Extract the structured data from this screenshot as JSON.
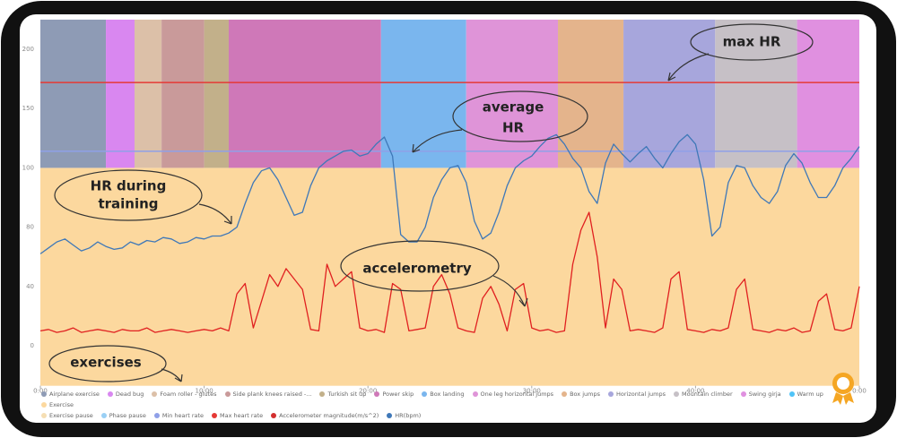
{
  "chart_data": {
    "type": "line",
    "ylim": [
      -27,
      225
    ],
    "yticks": [
      0,
      40,
      80,
      100,
      150,
      200
    ],
    "xlim": [
      0,
      50
    ],
    "xticks": [
      {
        "value": 0,
        "label": "0:00"
      },
      {
        "value": 10,
        "label": "10:00"
      },
      {
        "value": 20,
        "label": "20:00"
      },
      {
        "value": 30,
        "label": "30:00"
      },
      {
        "value": 40,
        "label": "40:00"
      },
      {
        "value": 50,
        "label": "0:00"
      }
    ],
    "base_band": {
      "to": 100,
      "color": "#fcd89e"
    },
    "segments": [
      {
        "start": 0,
        "end": 4.0,
        "color": "#8e9bb5"
      },
      {
        "start": 4.0,
        "end": 5.75,
        "color": "#d987f0"
      },
      {
        "start": 5.75,
        "end": 7.4,
        "color": "#dcc0a8"
      },
      {
        "start": 7.4,
        "end": 10.0,
        "color": "#c99a9a"
      },
      {
        "start": 10.0,
        "end": 11.5,
        "color": "#c2b08a"
      },
      {
        "start": 11.5,
        "end": 20.8,
        "color": "#cf78b8"
      },
      {
        "start": 20.8,
        "end": 26.0,
        "color": "#7ab6ee"
      },
      {
        "start": 26.0,
        "end": 31.6,
        "color": "#df94d8"
      },
      {
        "start": 31.6,
        "end": 35.6,
        "color": "#e4b48c"
      },
      {
        "start": 35.6,
        "end": 41.2,
        "color": "#a7a6dc"
      },
      {
        "start": 41.2,
        "end": 46.2,
        "color": "#c6c0c6"
      },
      {
        "start": 46.2,
        "end": 50,
        "color": "#e090e0"
      }
    ],
    "reference_lines": [
      {
        "name": "Max heart rate",
        "value": 172,
        "color": "#e53935"
      },
      {
        "name": "Min heart rate",
        "value": 114,
        "color": "#8fa0e8"
      }
    ],
    "x": [
      0,
      0.5,
      1,
      1.5,
      2,
      2.5,
      3,
      3.5,
      4,
      4.5,
      5,
      5.5,
      6,
      6.5,
      7,
      7.5,
      8,
      8.5,
      9,
      9.5,
      10,
      10.5,
      11,
      11.5,
      12,
      12.5,
      13,
      13.5,
      14,
      14.5,
      15,
      15.5,
      16,
      16.5,
      17,
      17.5,
      18,
      18.5,
      19,
      19.5,
      20,
      20.5,
      21,
      21.5,
      22,
      22.5,
      23,
      23.5,
      24,
      24.5,
      25,
      25.5,
      26,
      26.5,
      27,
      27.5,
      28,
      28.5,
      29,
      29.5,
      30,
      30.5,
      31,
      31.5,
      32,
      32.5,
      33,
      33.5,
      34,
      34.5,
      35,
      35.5,
      36,
      36.5,
      37,
      37.5,
      38,
      38.5,
      39,
      39.5,
      40,
      40.5,
      41,
      41.5,
      42,
      42.5,
      43,
      43.5,
      44,
      44.5,
      45,
      45.5,
      46,
      46.5,
      47,
      47.5,
      48,
      48.5,
      49,
      49.5,
      50
    ],
    "series": [
      {
        "name": "Accelerometer magnitude(m/s^2)",
        "color": "#e02020",
        "values": [
          10,
          11,
          9,
          10,
          12,
          9,
          10,
          11,
          10,
          9,
          11,
          10,
          10,
          12,
          9,
          10,
          11,
          10,
          9,
          10,
          11,
          10,
          12,
          10,
          35,
          42,
          12,
          30,
          48,
          40,
          52,
          45,
          38,
          11,
          10,
          55,
          40,
          45,
          50,
          12,
          10,
          11,
          9,
          42,
          38,
          10,
          11,
          12,
          40,
          48,
          35,
          12,
          10,
          9,
          32,
          40,
          28,
          10,
          38,
          42,
          12,
          10,
          11,
          9,
          10,
          55,
          78,
          85,
          60,
          12,
          45,
          38,
          10,
          11,
          10,
          9,
          12,
          45,
          50,
          11,
          10,
          9,
          11,
          10,
          12,
          38,
          45,
          11,
          10,
          9,
          11,
          10,
          12,
          9,
          10,
          30,
          35,
          11,
          10,
          12,
          40
        ]
      },
      {
        "name": "HR(bpm)",
        "color": "#3f78b8",
        "values": [
          62,
          66,
          70,
          72,
          68,
          64,
          66,
          70,
          67,
          65,
          66,
          70,
          68,
          71,
          70,
          73,
          72,
          69,
          70,
          73,
          72,
          74,
          74,
          76,
          80,
          88,
          95,
          99,
          100,
          96,
          90,
          84,
          85,
          94,
          100,
          106,
          110,
          114,
          115,
          110,
          112,
          120,
          126,
          110,
          75,
          70,
          70,
          80,
          90,
          96,
          100,
          102,
          95,
          82,
          72,
          76,
          85,
          94,
          100,
          106,
          110,
          118,
          125,
          128,
          120,
          108,
          100,
          92,
          88,
          104,
          120,
          112,
          105,
          112,
          118,
          108,
          100,
          112,
          122,
          128,
          120,
          96,
          74,
          80,
          95,
          102,
          100,
          94,
          90,
          88,
          92,
          102,
          112,
          104,
          95,
          90,
          90,
          94,
          100,
          108,
          118
        ]
      }
    ],
    "legend": [
      {
        "name": "Airplane exercise",
        "color": "#8e9bb5"
      },
      {
        "name": "Dead bug",
        "color": "#d987f0"
      },
      {
        "name": "Foam roller - glutes",
        "color": "#dcc0a8"
      },
      {
        "name": "Side plank knees raised -...",
        "color": "#c99a9a"
      },
      {
        "name": "Turkish sit up",
        "color": "#c2b08a"
      },
      {
        "name": "Power skip",
        "color": "#cf78b8"
      },
      {
        "name": "Box landing",
        "color": "#7ab6ee"
      },
      {
        "name": "One leg horizontal jumps",
        "color": "#df94d8"
      },
      {
        "name": "Box jumps",
        "color": "#e4b48c"
      },
      {
        "name": "Horizontal jumps",
        "color": "#a7a6dc"
      },
      {
        "name": "Mountain climber",
        "color": "#c6c0c6"
      },
      {
        "name": "Swing girja",
        "color": "#e090e0"
      },
      {
        "name": "Warm up",
        "color": "#4fc3f7"
      },
      {
        "name": "Exercise",
        "color": "#fcd89e"
      },
      {
        "name": "Exercise pause",
        "color": "#f5deb3"
      },
      {
        "name": "Phase pause",
        "color": "#9ad0f5"
      },
      {
        "name": "Min heart rate",
        "color": "#8fa0e8"
      },
      {
        "name": "Max heart rate",
        "color": "#e53935"
      },
      {
        "name": "Accelerometer magnitude(m/s^2)",
        "color": "#d32f2f"
      },
      {
        "name": "HR(bpm)",
        "color": "#3f78b8"
      }
    ],
    "annotations": {
      "max_hr": "max HR",
      "average_hr": [
        "average",
        "HR"
      ],
      "hr_training": [
        "HR during",
        "training"
      ],
      "accelerometry": "accelerometry",
      "exercises": "exercises"
    }
  }
}
